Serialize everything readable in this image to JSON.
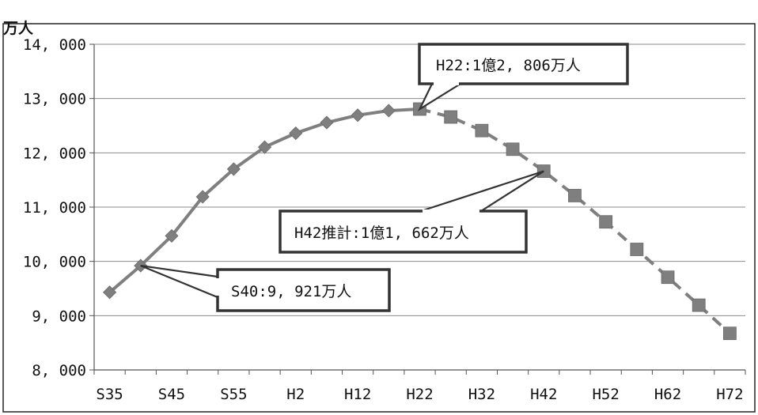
{
  "chart_data": {
    "type": "line",
    "unit_label": "万人",
    "ylim": [
      8000,
      14000
    ],
    "y_ticks": [
      "8, 000",
      "9, 000",
      "10, 000",
      "11, 000",
      "12, 000",
      "13, 000",
      "14, 000"
    ],
    "x_ticks": [
      "S35",
      "S45",
      "S55",
      "H2",
      "H12",
      "H22",
      "H32",
      "H42",
      "H52",
      "H62",
      "H72"
    ],
    "x": [
      "S35",
      "S40",
      "S45",
      "S50",
      "S55",
      "S60",
      "H2",
      "H7",
      "H12",
      "H17",
      "H22",
      "H27",
      "H32",
      "H37",
      "H42",
      "H47",
      "H52",
      "H57",
      "H62",
      "H67",
      "H72"
    ],
    "grid": true,
    "series": [
      {
        "style": "solid-diamond",
        "color": "#7f7f7f",
        "x": [
          "S35",
          "S40",
          "S45",
          "S50",
          "S55",
          "S60",
          "H2",
          "H7",
          "H12",
          "H17",
          "H22"
        ],
        "values": [
          9430,
          9921,
          10470,
          11190,
          11700,
          12105,
          12361,
          12557,
          12693,
          12777,
          12806
        ]
      },
      {
        "style": "dashed-square",
        "color": "#7f7f7f",
        "x": [
          "H22",
          "H27",
          "H32",
          "H37",
          "H42",
          "H47",
          "H52",
          "H57",
          "H62",
          "H67",
          "H72"
        ],
        "values": [
          12806,
          12660,
          12410,
          12066,
          11662,
          11212,
          10728,
          10221,
          9708,
          9193,
          8674
        ]
      }
    ],
    "annotations": [
      {
        "text": "H22:1億2, 806万人",
        "target_x": "H22",
        "target_value": 12806
      },
      {
        "text": "H42推計:1億1, 662万人",
        "target_x": "H42",
        "target_value": 11662
      },
      {
        "text": "S40:9, 921万人",
        "target_x": "S40",
        "target_value": 9921
      }
    ]
  }
}
